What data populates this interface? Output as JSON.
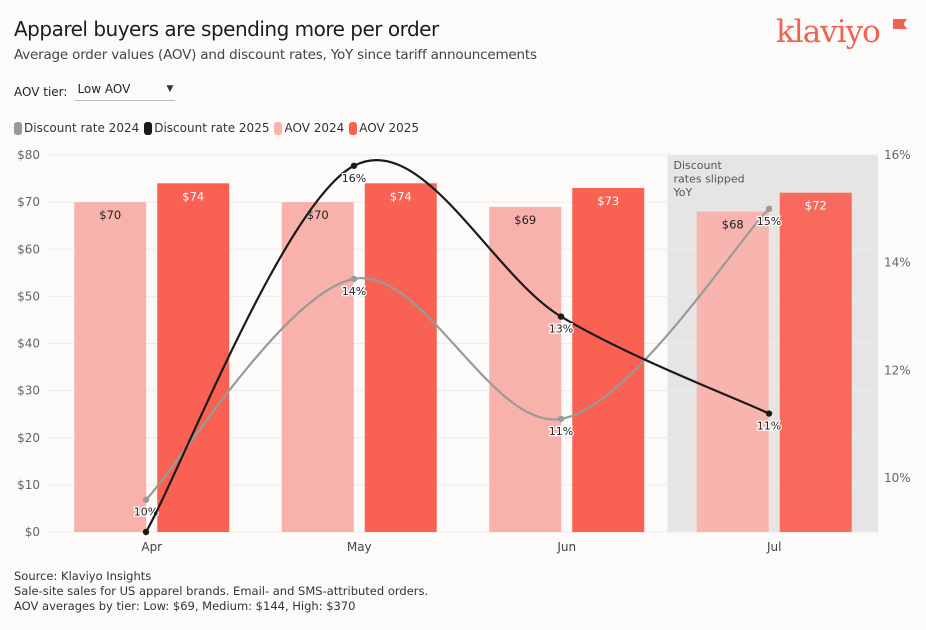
{
  "header": {
    "title": "Apparel buyers are spending more per order",
    "subtitle": "Average order values (AOV) and discount rates, YoY since tariff announcements",
    "logo_text": "klaviyo"
  },
  "filter": {
    "label": "AOV tier:",
    "selected": "Low AOV"
  },
  "footer": {
    "lines": [
      "Source: Klaviyo Insights",
      "Sale-site sales for US apparel brands. Email- and SMS-attributed orders.",
      "AOV averages by tier: Low: $69, Medium: $144, High: $370"
    ]
  },
  "chart_data": {
    "type": "bar+line",
    "title": "Apparel buyers are spending more per order",
    "categories": [
      "Apr",
      "May",
      "Jun",
      "Jul"
    ],
    "legend_position": "top-left",
    "grid": true,
    "y_left": {
      "ylim": [
        0,
        80
      ],
      "ticks": [
        "$0",
        "$10",
        "$20",
        "$30",
        "$40",
        "$50",
        "$60",
        "$70",
        "$80"
      ]
    },
    "y_right": {
      "ylim": [
        9,
        16
      ],
      "ticks": [
        "10%",
        "12%",
        "14%",
        "16%"
      ]
    },
    "series": [
      {
        "name": "Discount rate 2024",
        "kind": "line",
        "axis": "right",
        "color": "#9a9a9a",
        "values": [
          9.6,
          13.7,
          11.1,
          15.0
        ],
        "labels": [
          "10%",
          "14%",
          "11%",
          "15%"
        ]
      },
      {
        "name": "Discount rate 2025",
        "kind": "line",
        "axis": "right",
        "color": "#1a1a1a",
        "values": [
          9.0,
          15.8,
          13.0,
          11.2
        ],
        "labels": [
          "",
          "16%",
          "13%",
          "11%"
        ]
      },
      {
        "name": "AOV 2024",
        "kind": "bar",
        "axis": "left",
        "color": "#f9b2ab",
        "values": [
          70,
          70,
          69,
          68
        ],
        "labels": [
          "$70",
          "$70",
          "$69",
          "$68"
        ]
      },
      {
        "name": "AOV 2025",
        "kind": "bar",
        "axis": "left",
        "color": "#f96252",
        "values": [
          74,
          74,
          73,
          72
        ],
        "labels": [
          "$74",
          "$74",
          "$73",
          "$72"
        ]
      }
    ],
    "annotation": {
      "category": "Jul",
      "text": [
        "Discount",
        "rates slipped",
        "YoY"
      ],
      "shade_color": "#e6e5e3"
    }
  }
}
